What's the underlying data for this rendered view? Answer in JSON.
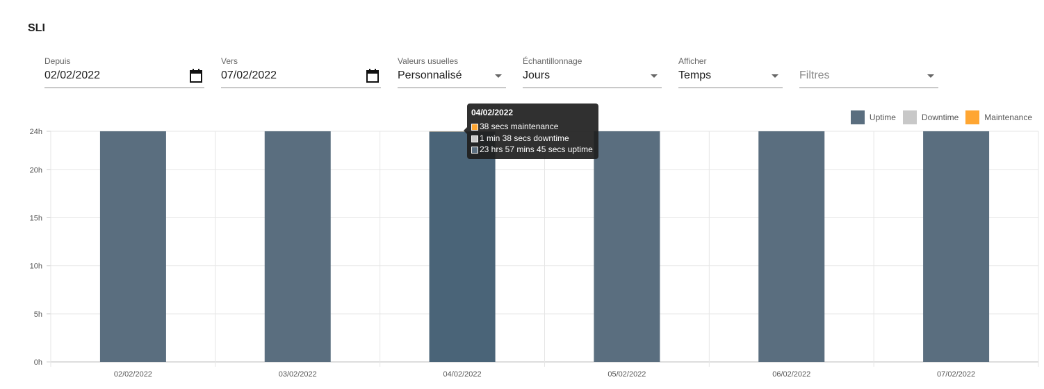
{
  "title": "SLI",
  "filters": [
    {
      "label": "Depuis",
      "value": "02/02/2022",
      "type": "date"
    },
    {
      "label": "Vers",
      "value": "07/02/2022",
      "type": "date"
    },
    {
      "label": "Valeurs usuelles",
      "value": "Personnalisé",
      "type": "select"
    },
    {
      "label": "Échantillonnage",
      "value": "Jours",
      "type": "select"
    },
    {
      "label": "Afficher",
      "value": "Temps",
      "type": "select"
    },
    {
      "label": "",
      "placeholder": "Filtres",
      "type": "select"
    }
  ],
  "tooltip": {
    "title": "04/02/2022",
    "rows": [
      "38 secs maintenance",
      "1 min 38 secs downtime",
      "23 hrs 57 mins 45 secs uptime"
    ]
  },
  "colors": {
    "uptime": "#5a6e7f",
    "uptime_hover": "#4a6478",
    "downtime": "#c8c8c8",
    "maintenance": "#ffa632"
  },
  "chart_data": {
    "type": "bar",
    "stacked": true,
    "categories": [
      "02/02/2022",
      "03/02/2022",
      "04/02/2022",
      "05/02/2022",
      "06/02/2022",
      "07/02/2022"
    ],
    "series": [
      {
        "name": "Uptime",
        "values": [
          24,
          24,
          23.9625,
          24,
          24,
          24
        ]
      },
      {
        "name": "Downtime",
        "values": [
          0,
          0,
          0.0272,
          0,
          0,
          0
        ]
      },
      {
        "name": "Maintenance",
        "values": [
          0,
          0,
          0.0106,
          0,
          0,
          0
        ]
      }
    ],
    "yticks": [
      "0h",
      "5h",
      "10h",
      "15h",
      "20h",
      "24h"
    ],
    "ytick_values": [
      0,
      5,
      10,
      15,
      20,
      24
    ],
    "ylim": [
      0,
      24
    ],
    "grid": true,
    "legend": "top-right",
    "highlighted": "04/02/2022"
  }
}
